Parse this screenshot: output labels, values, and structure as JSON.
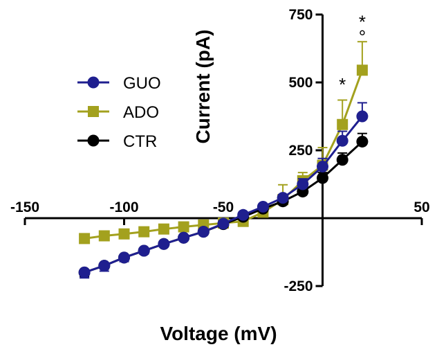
{
  "chart_data": {
    "type": "line",
    "xlabel": "Voltage (mV)",
    "ylabel": "Current (pA)",
    "xlim": [
      -150,
      50
    ],
    "ylim": [
      -250,
      750
    ],
    "x_ticks": [
      -150,
      -100,
      -50,
      50
    ],
    "y_ticks": [
      -250,
      250,
      500,
      750
    ],
    "legend_position": "left, below top",
    "grid": false,
    "x": [
      -120,
      -110,
      -100,
      -90,
      -80,
      -70,
      -60,
      -50,
      -40,
      -30,
      -20,
      -10,
      0,
      10,
      20
    ],
    "series": [
      {
        "name": "GUO",
        "color": "#1f1f8f",
        "marker": "circle",
        "values": [
          -200,
          -175,
          -145,
          -120,
          -95,
          -72,
          -50,
          -20,
          12,
          42,
          75,
          125,
          190,
          285,
          375
        ],
        "errors": [
          20,
          20,
          15,
          12,
          10,
          10,
          10,
          10,
          10,
          10,
          12,
          20,
          30,
          35,
          50
        ]
      },
      {
        "name": "ADO",
        "color": "#a3a11e",
        "marker": "square",
        "values": [
          -75,
          -65,
          -58,
          -50,
          -40,
          -32,
          -25,
          -18,
          -12,
          22,
          68,
          138,
          195,
          345,
          545
        ],
        "errors": [
          10,
          8,
          8,
          6,
          6,
          6,
          6,
          6,
          8,
          12,
          55,
          30,
          65,
          90,
          105
        ]
      },
      {
        "name": "CTR",
        "color": "#000000",
        "marker": "circle",
        "values": [
          -200,
          -175,
          -145,
          -120,
          -95,
          -72,
          -50,
          -22,
          5,
          35,
          62,
          98,
          148,
          215,
          282
        ],
        "errors": [
          15,
          12,
          10,
          10,
          8,
          8,
          8,
          8,
          8,
          8,
          10,
          15,
          20,
          25,
          30
        ]
      }
    ],
    "annotations": [
      {
        "text": "*",
        "x": 10,
        "y": 470
      },
      {
        "text": "*",
        "x": 20,
        "y": 700
      },
      {
        "text": "°",
        "x": 20,
        "y": 645
      }
    ]
  }
}
